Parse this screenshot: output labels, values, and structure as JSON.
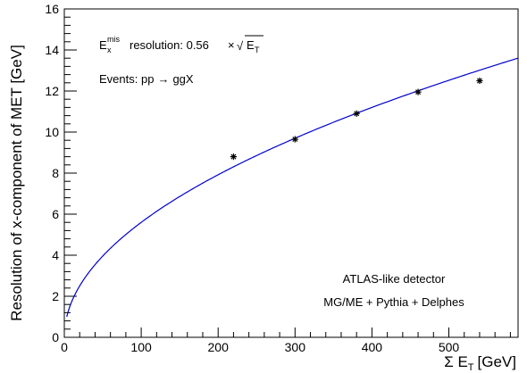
{
  "chart_data": {
    "type": "scatter",
    "title": "",
    "xlabel": "Σ E_T [GeV]",
    "xlabel_main": "Σ E",
    "xlabel_sub": "T",
    "xlabel_unit": "[GeV]",
    "ylabel": "Resolution of x-component  of MET [GeV]",
    "xlim": [
      0,
      590
    ],
    "ylim": [
      0,
      16
    ],
    "x_ticks": [
      0,
      100,
      200,
      300,
      400,
      500
    ],
    "x_tick_labels": [
      "0",
      "100",
      "200",
      "300",
      "400",
      "500"
    ],
    "y_ticks": [
      0,
      2,
      4,
      6,
      8,
      10,
      12,
      14,
      16
    ],
    "y_tick_labels": [
      "0",
      "2",
      "4",
      "6",
      "8",
      "10",
      "12",
      "14",
      "16"
    ],
    "grid": false,
    "series": [
      {
        "type": "scatter",
        "marker": "asterisk",
        "color": "#000000",
        "x": [
          220,
          300,
          380,
          460,
          540
        ],
        "y": [
          8.8,
          9.65,
          10.9,
          11.95,
          12.5
        ]
      },
      {
        "type": "line",
        "color": "#0000cc",
        "coefficient": 0.56,
        "function": "sqrt"
      }
    ],
    "annotations": {
      "resolution": {
        "e_main": "E",
        "e_sup": "mis",
        "e_sub": "x",
        "text": "resolution: 0.56",
        "times": "×",
        "sqrt_sym": "√",
        "sqrt_arg": "E",
        "sqrt_sub": "T"
      },
      "events": {
        "prefix": "Events: pp",
        "arrow": "→",
        "suffix": "ggX"
      },
      "detector": "ATLAS-like detector",
      "generator": "MG/ME + Pythia + Delphes"
    }
  }
}
